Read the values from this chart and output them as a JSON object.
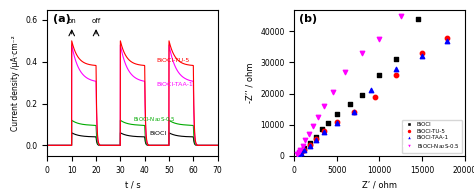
{
  "panel_a": {
    "title": "(a)",
    "xlabel": "t / s",
    "ylabel": "Current density /μA·cm⁻²",
    "xlim": [
      0,
      70
    ],
    "ylim": [
      -0.05,
      0.65
    ],
    "yticks": [
      0.0,
      0.2,
      0.4,
      0.6
    ],
    "on_time": 10,
    "off_time": 20,
    "cycles": [
      {
        "on": 10,
        "off": 20
      },
      {
        "on": 30,
        "off": 40
      },
      {
        "on": 50,
        "off": 60
      }
    ],
    "series": {
      "BiOCl-TU-5": {
        "color": "#ff0000",
        "peak": 0.5,
        "steady": 0.38,
        "baseline": 0.0,
        "decay_tau": 2.5
      },
      "BiOCl-TAA-1": {
        "color": "#ff00ff",
        "peak": 0.48,
        "steady": 0.3,
        "baseline": 0.0,
        "decay_tau": 3.0
      },
      "BiOCl-Na2S-0.5": {
        "color": "#00aa00",
        "peak": 0.12,
        "steady": 0.095,
        "baseline": 0.0,
        "decay_tau": 3.0
      },
      "BiOCl": {
        "color": "#000000",
        "peak": 0.06,
        "steady": 0.04,
        "baseline": 0.0,
        "decay_tau": 3.0
      }
    },
    "annotations": {
      "on_text": "on",
      "off_text": "off",
      "on_x": 10,
      "off_x": 20
    }
  },
  "panel_b": {
    "title": "(b)",
    "xlabel": "Z’ / ohm",
    "ylabel": "-Z’’ / ohm",
    "xlim": [
      0,
      20000
    ],
    "ylim": [
      0,
      47000
    ],
    "xticks": [
      0,
      5000,
      10000,
      15000,
      20000
    ],
    "yticks": [
      0,
      10000,
      20000,
      30000,
      40000
    ],
    "legend_labels": [
      "BiOCl",
      "BiOCl-TU-5",
      "BiOCl-TAA-1",
      "BiOCl-Na₂S-0.5"
    ],
    "legend_colors": [
      "#000000",
      "#ff0000",
      "#0000ff",
      "#ff00ff"
    ],
    "legend_markers": [
      "s",
      "o",
      "^",
      "v"
    ],
    "BiOCl": {
      "color": "#000000",
      "marker": "s",
      "x": [
        500,
        800,
        1200,
        1800,
        2500,
        3200,
        4000,
        5000,
        6500,
        8000,
        10000,
        12000,
        14500
      ],
      "y": [
        800,
        1500,
        2500,
        4000,
        6000,
        8500,
        10500,
        13500,
        16500,
        19500,
        26000,
        31000,
        44000
      ]
    },
    "BiOCl-TU-5": {
      "color": "#ff0000",
      "marker": "o",
      "x": [
        500,
        800,
        1200,
        1800,
        2500,
        3500,
        5000,
        7000,
        9500,
        12000,
        15000,
        18000
      ],
      "y": [
        600,
        1200,
        2000,
        3500,
        5500,
        8000,
        11000,
        14000,
        19000,
        26000,
        33000,
        38000
      ]
    },
    "BiOCl-TAA-1": {
      "color": "#0000ff",
      "marker": "^",
      "x": [
        500,
        800,
        1200,
        1800,
        2500,
        3500,
        5000,
        7000,
        9000,
        12000,
        15000,
        18000
      ],
      "y": [
        500,
        1000,
        1800,
        3000,
        5000,
        7500,
        10500,
        14000,
        21000,
        28000,
        32000,
        37000
      ]
    },
    "BiOCl-Na2S-0.5": {
      "color": "#ff00ff",
      "marker": "v",
      "x": [
        300,
        500,
        700,
        1000,
        1300,
        1700,
        2200,
        2800,
        3500,
        4500,
        6000,
        8000,
        10000,
        12500
      ],
      "y": [
        600,
        1200,
        2000,
        3200,
        5000,
        7000,
        9500,
        12500,
        16000,
        20500,
        27000,
        33000,
        37500,
        45000
      ]
    }
  }
}
